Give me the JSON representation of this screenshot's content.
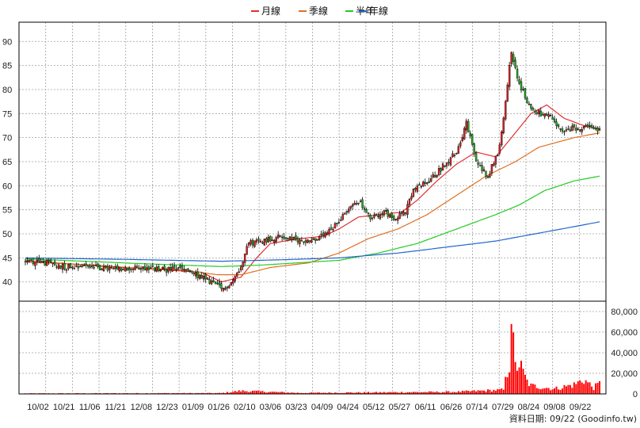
{
  "legend": {
    "items": [
      {
        "label": "月線",
        "color": "#e03030"
      },
      {
        "label": "季線",
        "color": "#e07020"
      },
      {
        "label": "半年",
        "color": "#22cc22"
      },
      {
        "label": "年線",
        "color": "#2266cc"
      }
    ]
  },
  "footer": {
    "text": "資料日期: 09/22  (Goodinfo.tw)"
  },
  "colors": {
    "up": "#e02020",
    "down": "#22aa22",
    "volume": "#ff0000",
    "grid": "#a0a0a0"
  },
  "chart_data": {
    "type": "candlestick_with_volume",
    "x_tick_labels": [
      "10/02",
      "10/21",
      "11/06",
      "11/21",
      "12/08",
      "12/23",
      "01/09",
      "01/26",
      "02/10",
      "03/06",
      "03/23",
      "04/09",
      "04/24",
      "05/12",
      "05/27",
      "06/11",
      "06/26",
      "07/14",
      "07/29",
      "08/24",
      "09/08",
      "09/22"
    ],
    "price_axis": {
      "ticks": [
        40,
        45,
        50,
        55,
        60,
        65,
        70,
        75,
        80,
        85,
        90
      ],
      "range": [
        36,
        94
      ],
      "side": "left"
    },
    "volume_axis": {
      "ticks": [
        0,
        20000,
        40000,
        60000,
        80000
      ],
      "tick_labels": [
        "0",
        "20,000",
        "40,000",
        "60,000",
        "80,000"
      ],
      "range": [
        0,
        90000
      ],
      "side": "right"
    },
    "grid": true,
    "legend_position": "top-center",
    "close_keypoints": [
      [
        0,
        44.5
      ],
      [
        10,
        44
      ],
      [
        20,
        43.2
      ],
      [
        30,
        43.5
      ],
      [
        40,
        42.8
      ],
      [
        50,
        42.5
      ],
      [
        60,
        43
      ],
      [
        70,
        42.5
      ],
      [
        80,
        42.8
      ],
      [
        95,
        40
      ],
      [
        101,
        38.3
      ],
      [
        106,
        40.5
      ],
      [
        110,
        43
      ],
      [
        113,
        48
      ],
      [
        120,
        48.5
      ],
      [
        130,
        49.5
      ],
      [
        140,
        48.5
      ],
      [
        150,
        49
      ],
      [
        157,
        51
      ],
      [
        162,
        54
      ],
      [
        170,
        57
      ],
      [
        176,
        53
      ],
      [
        182,
        54.5
      ],
      [
        188,
        53.5
      ],
      [
        194,
        54.5
      ],
      [
        198,
        59
      ],
      [
        206,
        61
      ],
      [
        213,
        64
      ],
      [
        220,
        67
      ],
      [
        225,
        73
      ],
      [
        230,
        65
      ],
      [
        236,
        62
      ],
      [
        242,
        68
      ],
      [
        248,
        88
      ],
      [
        252,
        81
      ],
      [
        258,
        76
      ],
      [
        268,
        74
      ],
      [
        274,
        71
      ],
      [
        280,
        72
      ],
      [
        288,
        72
      ],
      [
        293,
        71.5
      ]
    ],
    "moving_averages": [
      {
        "name": "月線",
        "values": [
          [
            0,
            44.2
          ],
          [
            30,
            43.6
          ],
          [
            60,
            42.8
          ],
          [
            90,
            42
          ],
          [
            100,
            40
          ],
          [
            110,
            41
          ],
          [
            118,
            45
          ],
          [
            125,
            48
          ],
          [
            140,
            49
          ],
          [
            152,
            49.5
          ],
          [
            160,
            51
          ],
          [
            170,
            53.5
          ],
          [
            180,
            54
          ],
          [
            192,
            54.5
          ],
          [
            200,
            57
          ],
          [
            210,
            61
          ],
          [
            220,
            64.5
          ],
          [
            230,
            67
          ],
          [
            240,
            66
          ],
          [
            248,
            70
          ],
          [
            258,
            75
          ],
          [
            266,
            76.8
          ],
          [
            275,
            74
          ],
          [
            285,
            72.5
          ],
          [
            293,
            71.8
          ]
        ]
      },
      {
        "name": "季線",
        "values": [
          [
            0,
            44.5
          ],
          [
            40,
            43.2
          ],
          [
            80,
            42.5
          ],
          [
            98,
            41.5
          ],
          [
            110,
            41.5
          ],
          [
            125,
            43
          ],
          [
            145,
            44
          ],
          [
            160,
            46
          ],
          [
            175,
            49
          ],
          [
            190,
            51
          ],
          [
            205,
            54
          ],
          [
            220,
            58
          ],
          [
            235,
            62
          ],
          [
            250,
            65
          ],
          [
            262,
            68
          ],
          [
            280,
            70
          ],
          [
            293,
            71
          ]
        ]
      },
      {
        "name": "半年",
        "values": [
          [
            0,
            44.8
          ],
          [
            60,
            43.8
          ],
          [
            100,
            43.2
          ],
          [
            120,
            43.5
          ],
          [
            140,
            44
          ],
          [
            160,
            44.5
          ],
          [
            180,
            46
          ],
          [
            200,
            48
          ],
          [
            220,
            51
          ],
          [
            240,
            54
          ],
          [
            252,
            56
          ],
          [
            265,
            59
          ],
          [
            280,
            61
          ],
          [
            293,
            62
          ]
        ]
      },
      {
        "name": "年線",
        "values": [
          [
            0,
            45
          ],
          [
            50,
            44.7
          ],
          [
            100,
            44.3
          ],
          [
            130,
            44.6
          ],
          [
            160,
            45
          ],
          [
            190,
            46
          ],
          [
            220,
            47.5
          ],
          [
            240,
            48.5
          ],
          [
            260,
            50
          ],
          [
            280,
            51.5
          ],
          [
            293,
            52.5
          ]
        ]
      }
    ],
    "volume_keypoints": [
      [
        0,
        500
      ],
      [
        100,
        800
      ],
      [
        110,
        3000
      ],
      [
        140,
        1000
      ],
      [
        180,
        1500
      ],
      [
        220,
        2000
      ],
      [
        244,
        4000
      ],
      [
        247,
        30000
      ],
      [
        248,
        87000
      ],
      [
        249,
        45000
      ],
      [
        250,
        25000
      ],
      [
        252,
        30000
      ],
      [
        254,
        20000
      ],
      [
        256,
        12000
      ],
      [
        258,
        8000
      ],
      [
        262,
        7000
      ],
      [
        270,
        5000
      ],
      [
        280,
        9000
      ],
      [
        285,
        14000
      ],
      [
        290,
        6000
      ],
      [
        293,
        10000
      ]
    ],
    "num_bars": 294,
    "title": "",
    "xlabel": "",
    "ylabel": ""
  }
}
